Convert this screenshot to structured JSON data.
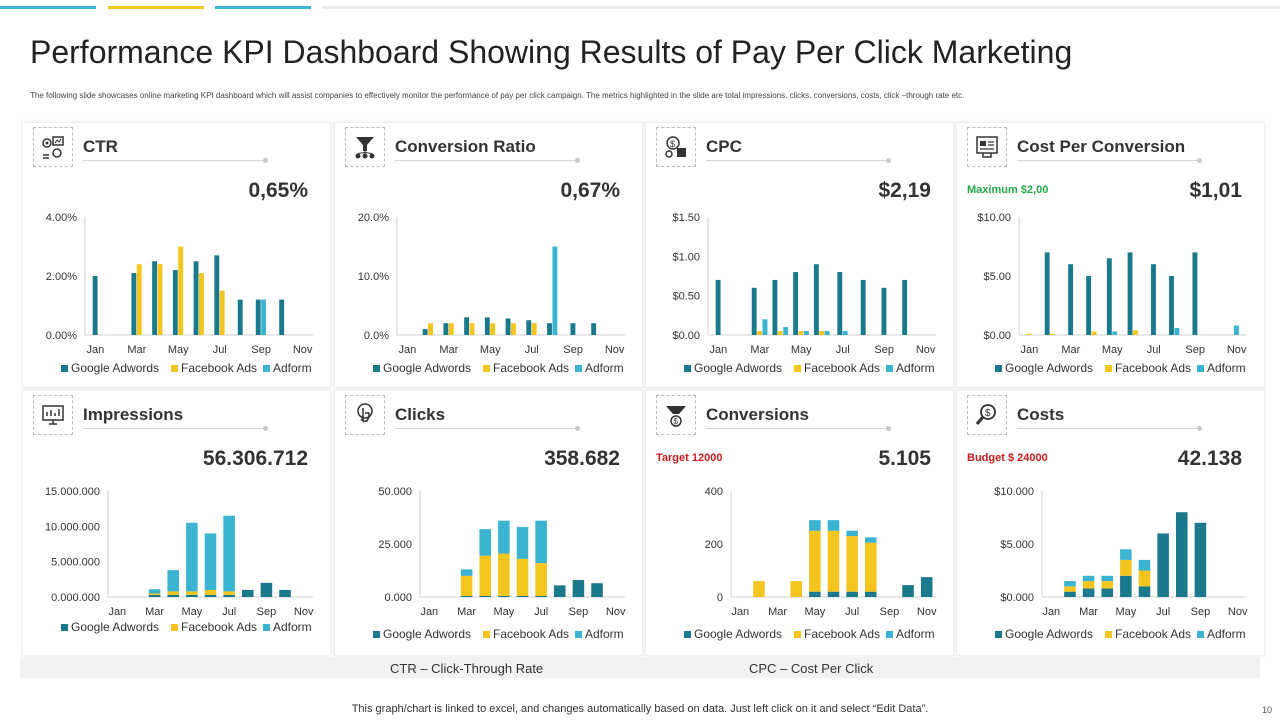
{
  "header": {
    "title": "Performance KPI Dashboard Showing Results of Pay Per Click Marketing",
    "subtitle": "The following slide showcases online marketing KPI dashboard which will assist companies to effectively monitor the performance of pay per click campaign. The metrics highlighted in the slide are total impressions, clicks, conversions, costs, click –through rate etc."
  },
  "colors": {
    "google": "#1a7a8c",
    "facebook": "#f4c51f",
    "adform": "#3ab4d1",
    "green_note": "#22a84a",
    "red_note": "#cc1b1b",
    "bar_blue": "#3a9fc0",
    "bar_yellow": "#f0c82a"
  },
  "legend_names": [
    "Google Adwords",
    "Facebook Ads",
    "Adform"
  ],
  "panels": [
    {
      "name": "ctr",
      "title": "CTR",
      "value": "0,65%",
      "icon": "ctr-icon"
    },
    {
      "name": "conversion-ratio",
      "title": "Conversion Ratio",
      "value": "0,67%",
      "icon": "funnel-icon"
    },
    {
      "name": "cpc",
      "title": "CPC",
      "value": "$2,19",
      "icon": "coins-icon"
    },
    {
      "name": "cost-per-conversion",
      "title": "Cost Per Conversion",
      "value": "$1,01",
      "note": "Maximum $2,00",
      "icon": "report-icon"
    },
    {
      "name": "impressions",
      "title": "Impressions",
      "value": "56.306.712",
      "icon": "monitor-icon"
    },
    {
      "name": "clicks",
      "title": "Clicks",
      "value": "358.682",
      "icon": "click-icon"
    },
    {
      "name": "conversions",
      "title": "Conversions",
      "value": "5.105",
      "note": "Target 12000",
      "icon": "conversion-funnel-icon"
    },
    {
      "name": "costs",
      "title": "Costs",
      "value": "42.138",
      "note": "Budget $ 24000",
      "icon": "magnifier-dollar-icon"
    }
  ],
  "chart_data": [
    {
      "type": "bar",
      "title": "CTR",
      "categories": [
        "Jan",
        "Feb",
        "Mar",
        "Apr",
        "May",
        "Jun",
        "Jul",
        "Aug",
        "Sep",
        "Oct",
        "Nov"
      ],
      "x_tick_labels": [
        "Jan",
        "Mar",
        "May",
        "Jul",
        "Sep",
        "Nov"
      ],
      "y_tick_labels": [
        "4.00%",
        "2.00%",
        "0.00%"
      ],
      "ylim": [
        0,
        4
      ],
      "series": [
        {
          "name": "Google Adwords",
          "values": [
            2.0,
            0,
            2.1,
            2.5,
            2.2,
            2.5,
            2.7,
            1.2,
            1.2,
            1.2,
            0
          ]
        },
        {
          "name": "Facebook Ads",
          "values": [
            0,
            0,
            2.4,
            2.4,
            3.0,
            2.1,
            1.5,
            0,
            0,
            0,
            0
          ]
        },
        {
          "name": "Adform",
          "values": [
            0,
            0,
            0,
            0,
            0,
            0,
            0,
            0,
            1.2,
            0,
            0
          ]
        }
      ]
    },
    {
      "type": "bar",
      "title": "Conversion Ratio",
      "categories": [
        "Jan",
        "Feb",
        "Mar",
        "Apr",
        "May",
        "Jun",
        "Jul",
        "Aug",
        "Sep",
        "Oct",
        "Nov"
      ],
      "x_tick_labels": [
        "Jan",
        "Mar",
        "May",
        "Jul",
        "Sep",
        "Nov"
      ],
      "y_tick_labels": [
        "20.0%",
        "10.0%",
        "0.0%"
      ],
      "ylim": [
        0,
        20
      ],
      "series": [
        {
          "name": "Google Adwords",
          "values": [
            0,
            1.0,
            2.0,
            3.0,
            3.0,
            2.8,
            2.5,
            2.0,
            2.0,
            2.0,
            0
          ]
        },
        {
          "name": "Facebook Ads",
          "values": [
            0,
            2.0,
            2.0,
            2.0,
            2.0,
            2.0,
            2.0,
            0,
            0,
            0,
            0
          ]
        },
        {
          "name": "Adform",
          "values": [
            0,
            0,
            0,
            0,
            0,
            0,
            0,
            15.0,
            0,
            0,
            0
          ]
        }
      ]
    },
    {
      "type": "bar",
      "title": "CPC",
      "categories": [
        "Jan",
        "Feb",
        "Mar",
        "Apr",
        "May",
        "Jun",
        "Jul",
        "Aug",
        "Sep",
        "Oct",
        "Nov"
      ],
      "x_tick_labels": [
        "Jan",
        "Mar",
        "May",
        "Jul",
        "Sep",
        "Nov"
      ],
      "y_tick_labels": [
        "$1.50",
        "$1.00",
        "$0.50",
        "$0.00"
      ],
      "ylim": [
        0,
        1.5
      ],
      "series": [
        {
          "name": "Google Adwords",
          "values": [
            0.7,
            0,
            0.6,
            0.7,
            0.8,
            0.9,
            0.8,
            0.7,
            0.6,
            0.7,
            0
          ]
        },
        {
          "name": "Facebook Ads",
          "values": [
            0,
            0,
            0.05,
            0.05,
            0.05,
            0.05,
            0,
            0,
            0,
            0,
            0
          ]
        },
        {
          "name": "Adform",
          "values": [
            0,
            0,
            0.2,
            0.1,
            0.05,
            0.05,
            0.05,
            0,
            0,
            0,
            0
          ]
        }
      ]
    },
    {
      "type": "bar",
      "title": "Cost Per Conversion",
      "categories": [
        "Jan",
        "Feb",
        "Mar",
        "Apr",
        "May",
        "Jun",
        "Jul",
        "Aug",
        "Sep",
        "Oct",
        "Nov"
      ],
      "x_tick_labels": [
        "Jan",
        "Mar",
        "May",
        "Jul",
        "Sep",
        "Nov"
      ],
      "y_tick_labels": [
        "$10.00",
        "$5.00",
        "$0.00"
      ],
      "ylim": [
        0,
        10
      ],
      "series": [
        {
          "name": "Google Adwords",
          "values": [
            0,
            7.0,
            6.0,
            5.0,
            6.5,
            7.0,
            6.0,
            5.0,
            7.0,
            0,
            0
          ]
        },
        {
          "name": "Facebook Ads",
          "values": [
            0.1,
            0.1,
            0,
            0.3,
            0,
            0.4,
            0,
            0,
            0,
            0,
            0
          ]
        },
        {
          "name": "Adform",
          "values": [
            0,
            0,
            0,
            0,
            0.3,
            0,
            0,
            0.6,
            0,
            0,
            0.8
          ]
        }
      ]
    },
    {
      "type": "stacked-bar",
      "title": "Impressions",
      "categories": [
        "Jan",
        "Feb",
        "Mar",
        "Apr",
        "May",
        "Jun",
        "Jul",
        "Aug",
        "Sep",
        "Oct",
        "Nov"
      ],
      "x_tick_labels": [
        "Jan",
        "Mar",
        "May",
        "Jul",
        "Sep",
        "Nov"
      ],
      "y_tick_labels": [
        "15.000.000",
        "10.000.000",
        "5.000.000",
        "0.000.000"
      ],
      "ylim": [
        0,
        15000000
      ],
      "series": [
        {
          "name": "Google Adwords",
          "values": [
            0,
            0,
            300000,
            300000,
            300000,
            300000,
            300000,
            1000000,
            2000000,
            1000000,
            0
          ]
        },
        {
          "name": "Facebook Ads",
          "values": [
            0,
            0,
            200000,
            500000,
            500000,
            700000,
            500000,
            0,
            0,
            0,
            0
          ]
        },
        {
          "name": "Adform",
          "values": [
            0,
            0,
            600000,
            3000000,
            9700000,
            8000000,
            10700000,
            0,
            0,
            0,
            0
          ]
        }
      ]
    },
    {
      "type": "stacked-bar",
      "title": "Clicks",
      "categories": [
        "Jan",
        "Feb",
        "Mar",
        "Apr",
        "May",
        "Jun",
        "Jul",
        "Aug",
        "Sep",
        "Oct",
        "Nov"
      ],
      "x_tick_labels": [
        "Jan",
        "Mar",
        "May",
        "Jul",
        "Sep",
        "Nov"
      ],
      "y_tick_labels": [
        "50.000",
        "25.000",
        "0.000"
      ],
      "ylim": [
        0,
        50000
      ],
      "series": [
        {
          "name": "Google Adwords",
          "values": [
            0,
            0,
            500,
            500,
            500,
            500,
            500,
            5500,
            8000,
            6500,
            0
          ]
        },
        {
          "name": "Facebook Ads",
          "values": [
            0,
            0,
            9500,
            19000,
            20000,
            17500,
            15500,
            0,
            0,
            0,
            0
          ]
        },
        {
          "name": "Adform",
          "values": [
            0,
            0,
            3000,
            12500,
            15500,
            15000,
            20000,
            0,
            0,
            0,
            0
          ]
        }
      ]
    },
    {
      "type": "stacked-bar",
      "title": "Conversions",
      "categories": [
        "Jan",
        "Feb",
        "Mar",
        "Apr",
        "May",
        "Jun",
        "Jul",
        "Aug",
        "Sep",
        "Oct",
        "Nov"
      ],
      "x_tick_labels": [
        "Jan",
        "Mar",
        "May",
        "Jul",
        "Sep",
        "Nov"
      ],
      "y_tick_labels": [
        "400",
        "200",
        "0"
      ],
      "ylim": [
        0,
        400
      ],
      "series": [
        {
          "name": "Google Adwords",
          "values": [
            0,
            0,
            0,
            0,
            20,
            20,
            20,
            20,
            0,
            45,
            75
          ]
        },
        {
          "name": "Facebook Ads",
          "values": [
            0,
            60,
            0,
            60,
            230,
            230,
            210,
            185,
            0,
            0,
            0
          ]
        },
        {
          "name": "Adform",
          "values": [
            0,
            0,
            0,
            0,
            40,
            40,
            20,
            20,
            0,
            0,
            0
          ]
        }
      ]
    },
    {
      "type": "stacked-bar",
      "title": "Costs",
      "categories": [
        "Jan",
        "Feb",
        "Mar",
        "Apr",
        "May",
        "Jun",
        "Jul",
        "Aug",
        "Sep",
        "Oct",
        "Nov"
      ],
      "x_tick_labels": [
        "Jan",
        "Mar",
        "May",
        "Jul",
        "Sep",
        "Nov"
      ],
      "y_tick_labels": [
        "$10.000",
        "$5.000",
        "$0.000"
      ],
      "ylim": [
        0,
        10000
      ],
      "series": [
        {
          "name": "Google Adwords",
          "values": [
            0,
            500,
            800,
            800,
            2000,
            1000,
            6000,
            8000,
            7000,
            0,
            0
          ]
        },
        {
          "name": "Facebook Ads",
          "values": [
            0,
            500,
            700,
            700,
            1500,
            1500,
            0,
            0,
            0,
            0,
            0
          ]
        },
        {
          "name": "Adform",
          "values": [
            0,
            500,
            500,
            500,
            1000,
            1000,
            0,
            0,
            0,
            0,
            0
          ]
        }
      ]
    }
  ],
  "footer": {
    "abbr_ctr": "CTR – Click-Through  Rate",
    "abbr_cpc": "CPC – Cost Per Click",
    "note": "This graph/chart is linked to excel, and changes automatically based on data. Just left click on it and select “Edit Data”.",
    "page_number": "10"
  }
}
